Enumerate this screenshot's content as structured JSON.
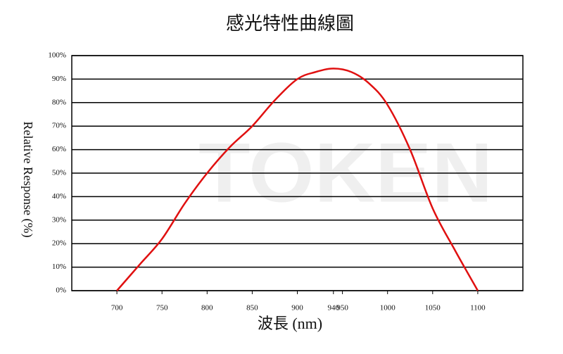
{
  "chart_data": {
    "type": "line",
    "title": "感光特性曲線圖",
    "x_label": "波長 (nm)",
    "y_label": "Relative Response (%)",
    "watermark": "TOKEN",
    "x": [
      700,
      725,
      750,
      775,
      800,
      825,
      850,
      875,
      900,
      920,
      940,
      960,
      980,
      1000,
      1025,
      1050,
      1075,
      1100
    ],
    "values": [
      0,
      11,
      22,
      37,
      50,
      61,
      70,
      81,
      90,
      93,
      94.5,
      93,
      88,
      79,
      60,
      35,
      17,
      0
    ],
    "color": "#e01010",
    "xlim": [
      650,
      1150
    ],
    "xticks": [
      700,
      750,
      800,
      850,
      900,
      940,
      950,
      1000,
      1050,
      1100
    ],
    "ylim": [
      0,
      100
    ],
    "yticks": [
      {
        "value": 0,
        "label": "0%"
      },
      {
        "value": 10,
        "label": "10%"
      },
      {
        "value": 20,
        "label": "20%"
      },
      {
        "value": 30,
        "label": "30%"
      },
      {
        "value": 40,
        "label": "40%"
      },
      {
        "value": 50,
        "label": "50%"
      },
      {
        "value": 60,
        "label": "60%"
      },
      {
        "value": 70,
        "label": "70%"
      },
      {
        "value": 80,
        "label": "80%"
      },
      {
        "value": 90,
        "label": "90%"
      },
      {
        "value": 100,
        "label": "100%"
      }
    ],
    "grid": true
  }
}
